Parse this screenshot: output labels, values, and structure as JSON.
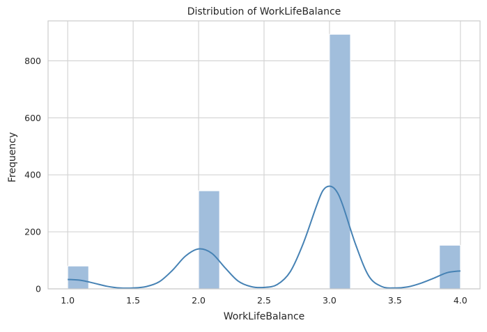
{
  "chart_data": {
    "type": "bar",
    "title": "Distribution of WorkLifeBalance",
    "xlabel": "WorkLifeBalance",
    "ylabel": "Frequency",
    "xlim": [
      0.85,
      4.15
    ],
    "ylim": [
      0,
      940
    ],
    "xticks": [
      "1.0",
      "1.5",
      "2.0",
      "2.5",
      "3.0",
      "3.5",
      "4.0"
    ],
    "xtick_values": [
      1.0,
      1.5,
      2.0,
      2.5,
      3.0,
      3.5,
      4.0
    ],
    "yticks": [
      "0",
      "200",
      "400",
      "600",
      "800"
    ],
    "ytick_values": [
      0,
      200,
      400,
      600,
      800
    ],
    "bins": [
      {
        "x0": 1.0,
        "x1": 1.16,
        "count": 80
      },
      {
        "x0": 2.0,
        "x1": 2.16,
        "count": 344
      },
      {
        "x0": 3.0,
        "x1": 3.16,
        "count": 893
      },
      {
        "x0": 3.84,
        "x1": 4.0,
        "count": 153
      }
    ],
    "kde": {
      "x": [
        1.0,
        1.1,
        1.2,
        1.3,
        1.4,
        1.5,
        1.6,
        1.7,
        1.8,
        1.9,
        2.0,
        2.1,
        2.2,
        2.3,
        2.4,
        2.5,
        2.6,
        2.7,
        2.8,
        2.9,
        2.95,
        3.0,
        3.05,
        3.1,
        3.2,
        3.3,
        3.4,
        3.5,
        3.6,
        3.7,
        3.8,
        3.9,
        4.0
      ],
      "y": [
        33,
        30,
        20,
        9,
        3,
        3,
        8,
        25,
        65,
        115,
        140,
        125,
        75,
        28,
        8,
        5,
        15,
        60,
        160,
        290,
        345,
        360,
        345,
        295,
        155,
        45,
        8,
        3,
        7,
        20,
        38,
        57,
        63
      ]
    },
    "grid": true,
    "bar_color": "#a1bedc",
    "bar_edge_color": "#ffffff",
    "line_color": "#4682b4"
  }
}
